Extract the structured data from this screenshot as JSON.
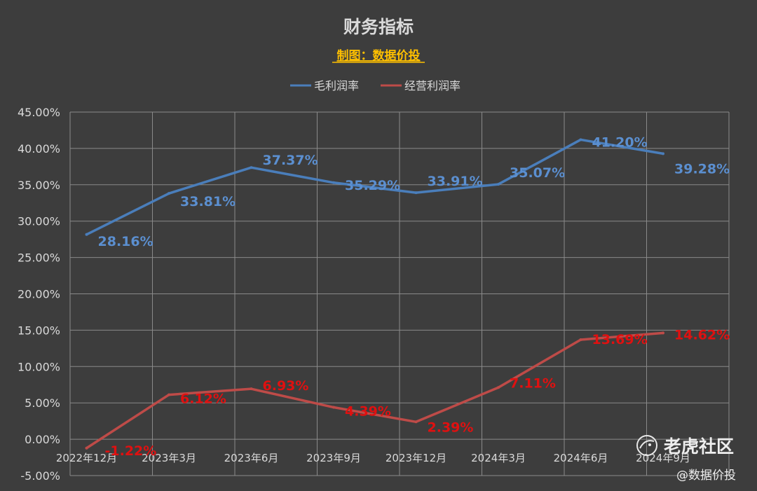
{
  "chart_data": {
    "type": "line",
    "title": "财务指标",
    "subtitle": "制图：数据价投",
    "categories": [
      "2022年12月",
      "2023年3月",
      "2023年6月",
      "2023年9月",
      "2023年12月",
      "2024年3月",
      "2024年6月",
      "2024年9月"
    ],
    "series": [
      {
        "name": "毛利润率",
        "values": [
          28.16,
          33.81,
          37.37,
          35.29,
          33.91,
          35.07,
          41.2,
          39.28
        ],
        "labels": [
          "28.16%",
          "33.81%",
          "37.37%",
          "35.29%",
          "33.91%",
          "35.07%",
          "41.20%",
          "39.28%"
        ]
      },
      {
        "name": "经营利润率",
        "values": [
          -1.22,
          6.12,
          6.93,
          4.39,
          2.39,
          7.11,
          13.69,
          14.62
        ],
        "labels": [
          "-1.22%",
          "6.12%",
          "6.93%",
          "4.39%",
          "2.39%",
          "7.11%",
          "13.69%",
          "14.62%"
        ]
      }
    ],
    "ylim": [
      -5,
      45
    ],
    "yticks": [
      "-5.00%",
      "0.00%",
      "5.00%",
      "10.00%",
      "15.00%",
      "20.00%",
      "25.00%",
      "30.00%",
      "35.00%",
      "40.00%",
      "45.00%"
    ],
    "grid": true,
    "legend_position": "top-center",
    "colors": {
      "background": "#3d3d3d",
      "title": "#d9d9d9",
      "subtitle": "#ffc000",
      "grid": "#8a8a8a",
      "axis_text": "#d9d9d9",
      "series_1": "#4a7ebb",
      "series_1_label": "#5b8fd0",
      "series_2": "#be4b48",
      "series_2_label": "#e01010"
    }
  },
  "watermark": {
    "logo_text": "老虎社区",
    "handle": "@数据价投",
    "logo_icon": "tiger-logo-icon"
  }
}
